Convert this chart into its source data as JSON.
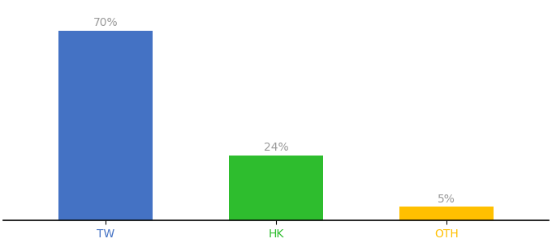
{
  "categories": [
    "TW",
    "HK",
    "OTH"
  ],
  "values": [
    70,
    24,
    5
  ],
  "bar_colors": [
    "#4472C4",
    "#2EBD2E",
    "#FFC000"
  ],
  "label_texts": [
    "70%",
    "24%",
    "5%"
  ],
  "ylim": [
    0,
    80
  ],
  "background_color": "#ffffff",
  "label_color": "#999999",
  "tick_colors": [
    "#4472C4",
    "#2EBD2E",
    "#FFC000"
  ],
  "bar_width": 0.55,
  "label_fontsize": 10,
  "tick_fontsize": 10,
  "x_positions": [
    1,
    2,
    3
  ]
}
